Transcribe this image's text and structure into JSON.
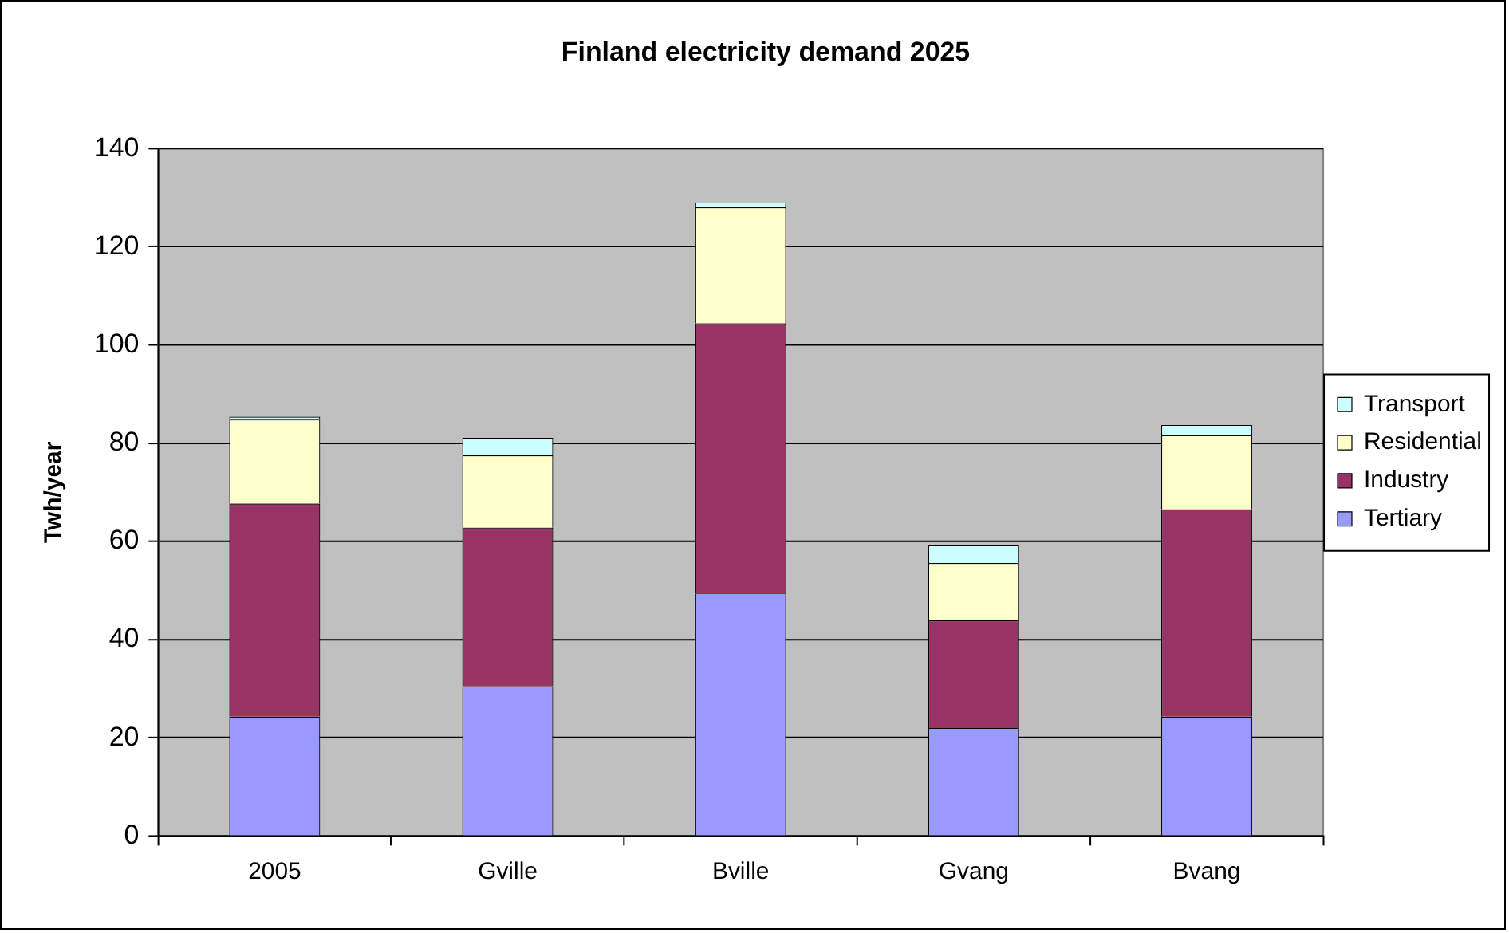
{
  "chart_data": {
    "type": "bar",
    "title": "Finland electricity demand 2025",
    "ylabel": "Twh/year",
    "categories": [
      "2005",
      "Gville",
      "Bville",
      "Gvang",
      "Bvang"
    ],
    "series": [
      {
        "name": "Tertiary",
        "color": "#9999ff",
        "values": [
          24.3,
          30.5,
          49.4,
          22.0,
          24.3
        ]
      },
      {
        "name": "Industry",
        "color": "#993366",
        "values": [
          43.4,
          32.3,
          55.0,
          21.9,
          42.2
        ]
      },
      {
        "name": "Residential",
        "color": "#ffffcc",
        "values": [
          17.1,
          14.7,
          23.6,
          11.7,
          15.1
        ]
      },
      {
        "name": "Transport",
        "color": "#ccffff",
        "values": [
          0.6,
          3.6,
          1.0,
          3.6,
          2.1
        ]
      }
    ],
    "stacked": true,
    "ylim": [
      0,
      140
    ],
    "yticks": [
      0,
      20,
      40,
      60,
      80,
      100,
      120,
      140
    ],
    "grid": "y",
    "legend": "right"
  }
}
